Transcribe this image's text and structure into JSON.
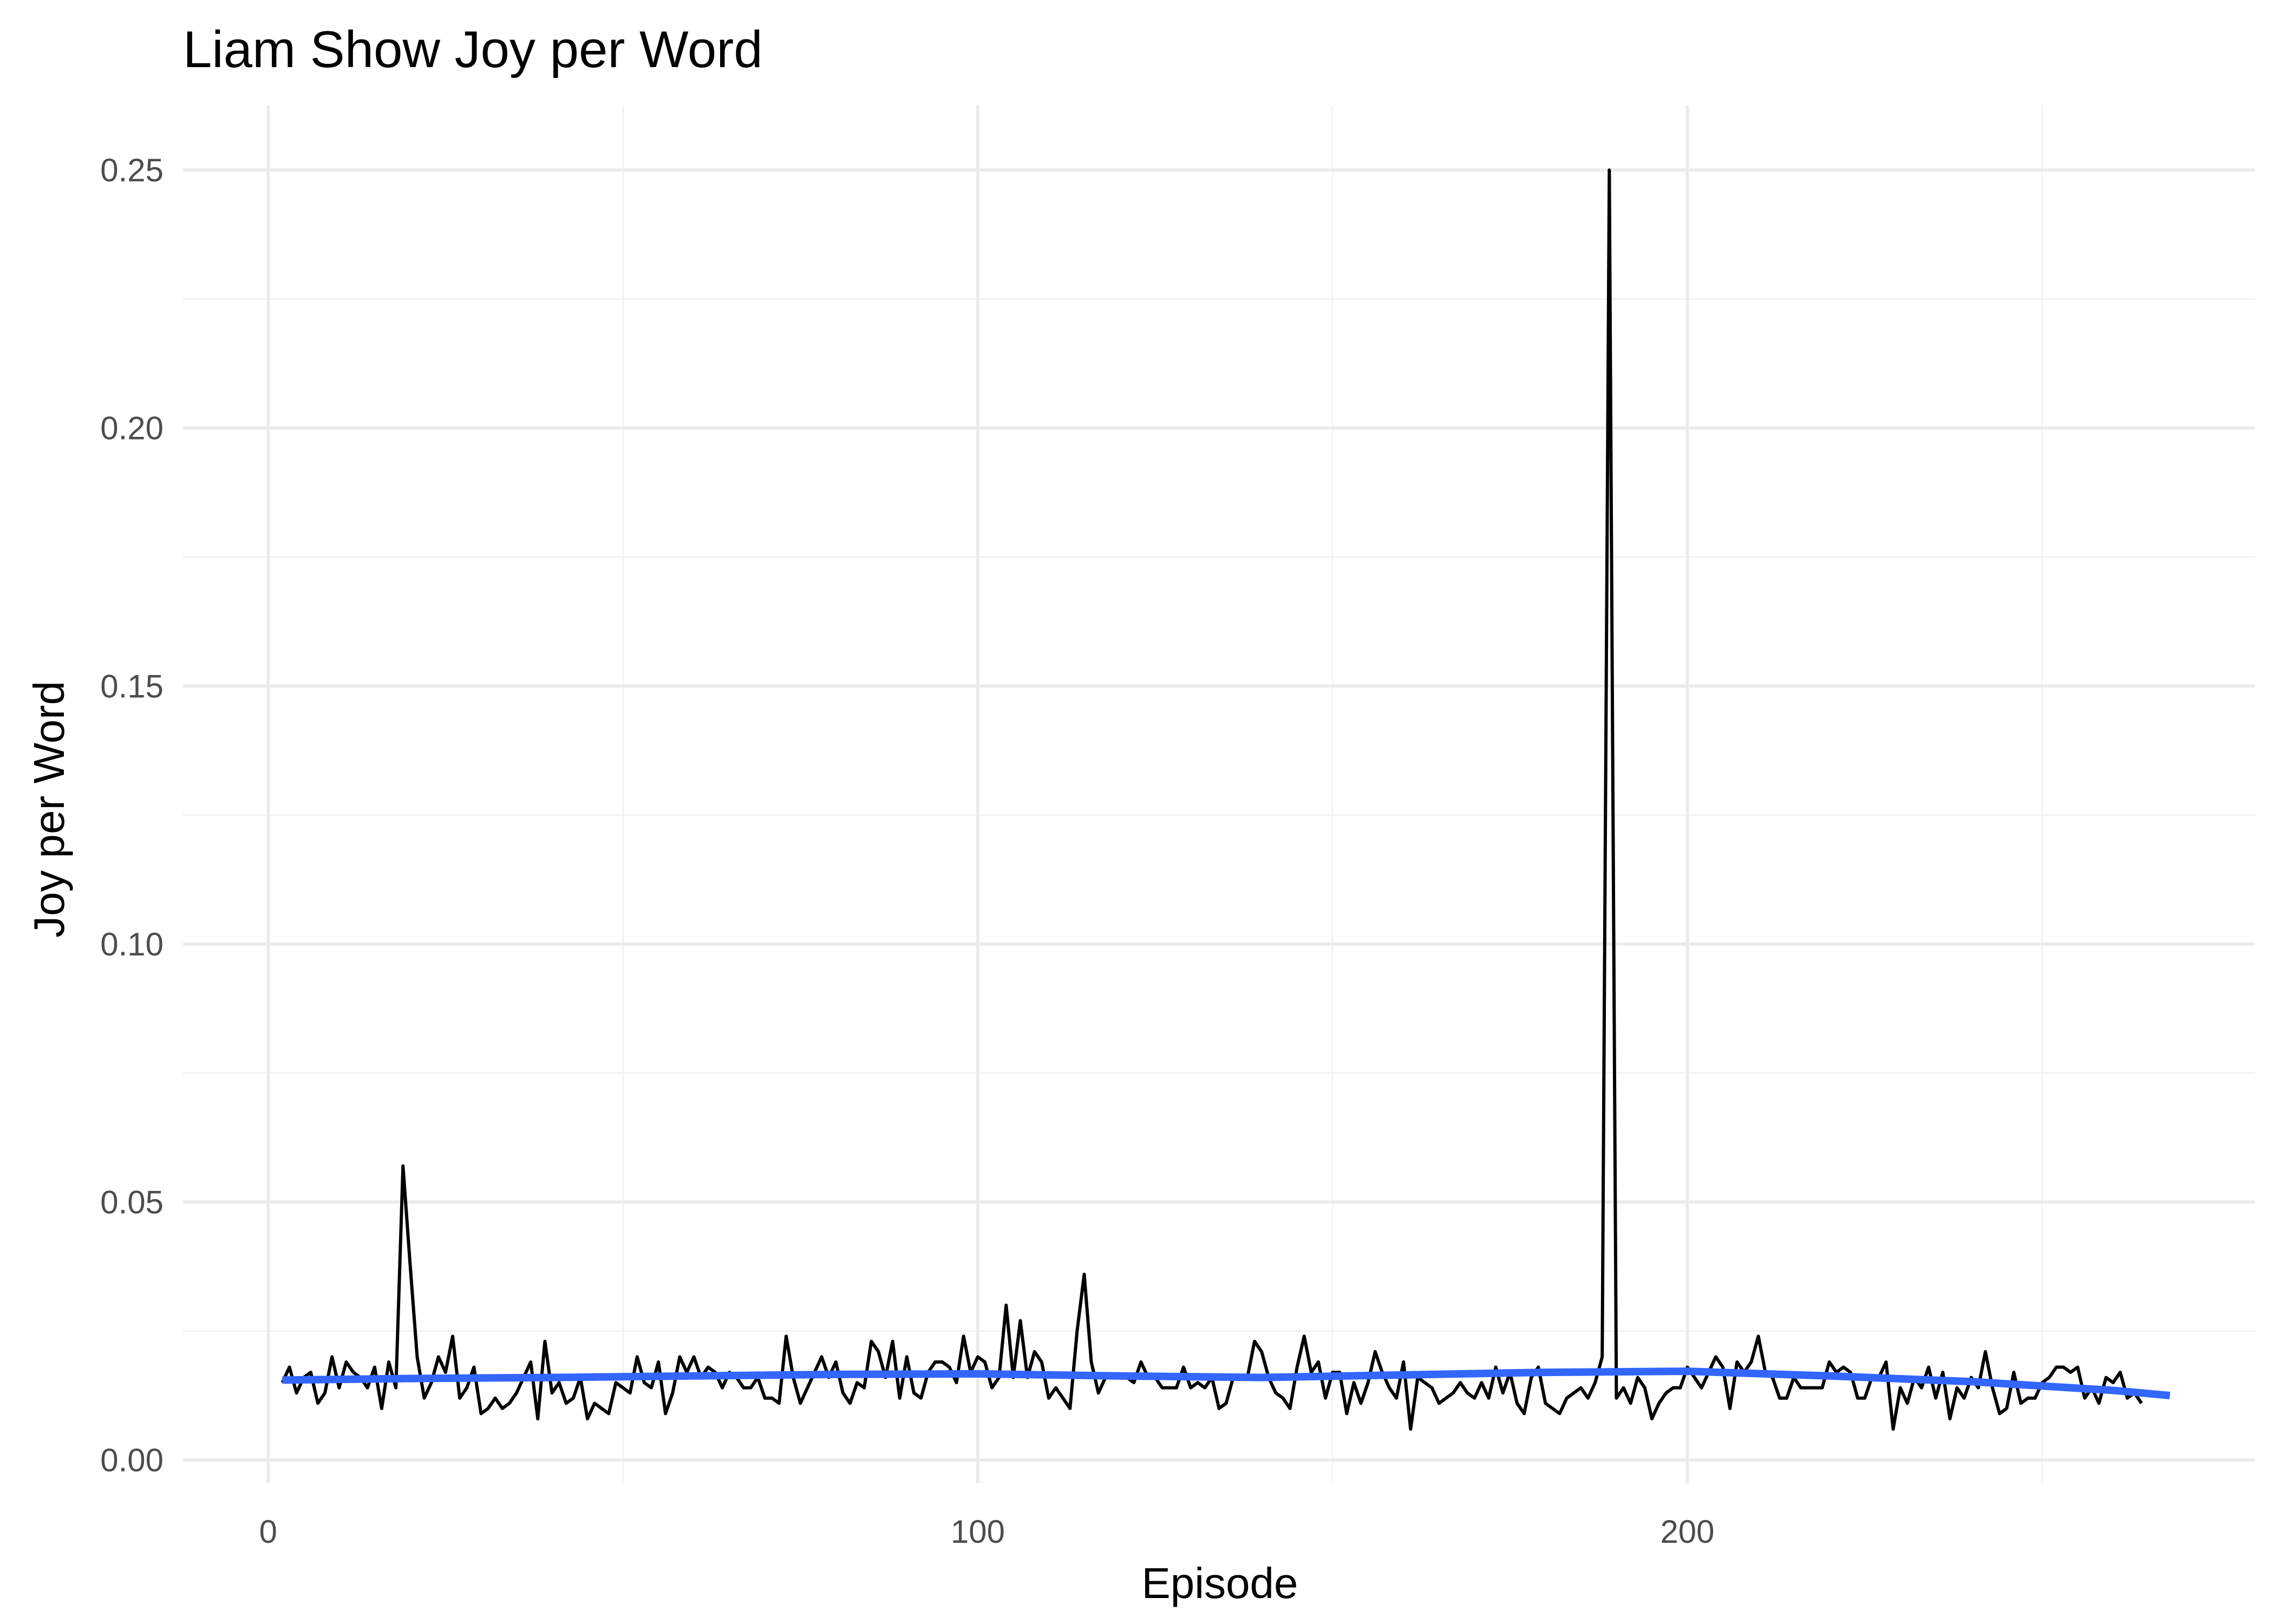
{
  "chart_data": {
    "type": "line",
    "title": "Liam Show Joy per Word",
    "xlabel": "Episode",
    "ylabel": "Joy per Word",
    "xlim": [
      -12,
      280
    ],
    "ylim": [
      -0.0045,
      0.2625
    ],
    "x_ticks": [
      0,
      100,
      200
    ],
    "x_tick_labels": [
      "0",
      "100",
      "200"
    ],
    "y_ticks": [
      0.0,
      0.05,
      0.1,
      0.15,
      0.2,
      0.25
    ],
    "y_tick_labels": [
      "0.00",
      "0.05",
      "0.10",
      "0.15",
      "0.20",
      "0.25"
    ],
    "grid": true,
    "series": [
      {
        "color": "#000000",
        "x_start": 2,
        "x_step": 1,
        "values": [
          0.015,
          0.018,
          0.013,
          0.016,
          0.017,
          0.011,
          0.013,
          0.02,
          0.014,
          0.019,
          0.017,
          0.016,
          0.014,
          0.018,
          0.01,
          0.019,
          0.014,
          0.057,
          0.038,
          0.02,
          0.012,
          0.015,
          0.02,
          0.017,
          0.024,
          0.012,
          0.014,
          0.018,
          0.009,
          0.01,
          0.012,
          0.01,
          0.011,
          0.013,
          0.016,
          0.019,
          0.008,
          0.023,
          0.013,
          0.015,
          0.011,
          0.012,
          0.016,
          0.008,
          0.011,
          0.01,
          0.009,
          0.015,
          0.014,
          0.013,
          0.02,
          0.015,
          0.014,
          0.019,
          0.009,
          0.013,
          0.02,
          0.017,
          0.02,
          0.016,
          0.018,
          0.017,
          0.014,
          0.017,
          0.016,
          0.014,
          0.014,
          0.016,
          0.012,
          0.012,
          0.011,
          0.024,
          0.016,
          0.011,
          0.014,
          0.017,
          0.02,
          0.016,
          0.019,
          0.013,
          0.011,
          0.015,
          0.014,
          0.023,
          0.021,
          0.016,
          0.023,
          0.012,
          0.02,
          0.013,
          0.012,
          0.017,
          0.019,
          0.019,
          0.018,
          0.015,
          0.024,
          0.017,
          0.02,
          0.019,
          0.014,
          0.016,
          0.03,
          0.016,
          0.027,
          0.016,
          0.021,
          0.019,
          0.012,
          0.014,
          0.012,
          0.01,
          0.025,
          0.036,
          0.019,
          0.013,
          0.016,
          0.016,
          0.016,
          0.016,
          0.015,
          0.019,
          0.016,
          0.016,
          0.014,
          0.014,
          0.014,
          0.018,
          0.014,
          0.015,
          0.014,
          0.016,
          0.01,
          0.011,
          0.016,
          0.016,
          0.016,
          0.023,
          0.021,
          0.016,
          0.013,
          0.012,
          0.01,
          0.018,
          0.024,
          0.017,
          0.019,
          0.012,
          0.017,
          0.017,
          0.009,
          0.015,
          0.011,
          0.015,
          0.021,
          0.017,
          0.014,
          0.012,
          0.019,
          0.006,
          0.016,
          0.015,
          0.014,
          0.011,
          0.012,
          0.013,
          0.015,
          0.013,
          0.012,
          0.015,
          0.012,
          0.018,
          0.013,
          0.017,
          0.011,
          0.009,
          0.016,
          0.018,
          0.011,
          0.01,
          0.009,
          0.012,
          0.013,
          0.014,
          0.012,
          0.015,
          0.02,
          0.25,
          0.012,
          0.014,
          0.011,
          0.016,
          0.014,
          0.008,
          0.011,
          0.013,
          0.014,
          0.014,
          0.018,
          0.016,
          0.014,
          0.017,
          0.02,
          0.018,
          0.01,
          0.019,
          0.017,
          0.019,
          0.024,
          0.017,
          0.016,
          0.012,
          0.012,
          0.016,
          0.014,
          0.014,
          0.014,
          0.014,
          0.019,
          0.017,
          0.018,
          0.017,
          0.012,
          0.012,
          0.016,
          0.016,
          0.019,
          0.006,
          0.014,
          0.011,
          0.016,
          0.014,
          0.018,
          0.012,
          0.017,
          0.008,
          0.014,
          0.012,
          0.016,
          0.014,
          0.021,
          0.014,
          0.009,
          0.01,
          0.017,
          0.011,
          0.012,
          0.012,
          0.015,
          0.016,
          0.018,
          0.018,
          0.017,
          0.018,
          0.012,
          0.014,
          0.011,
          0.016,
          0.015,
          0.017,
          0.012,
          0.013,
          0.011
        ]
      },
      {
        "color": "#3366FF",
        "x": [
          2,
          20,
          40,
          60,
          80,
          100,
          120,
          140,
          160,
          180,
          200,
          220,
          240,
          260,
          268
        ],
        "values": [
          0.0155,
          0.0158,
          0.016,
          0.0163,
          0.0166,
          0.0167,
          0.0163,
          0.016,
          0.0165,
          0.017,
          0.0172,
          0.0163,
          0.0152,
          0.0135,
          0.0125
        ]
      }
    ]
  }
}
